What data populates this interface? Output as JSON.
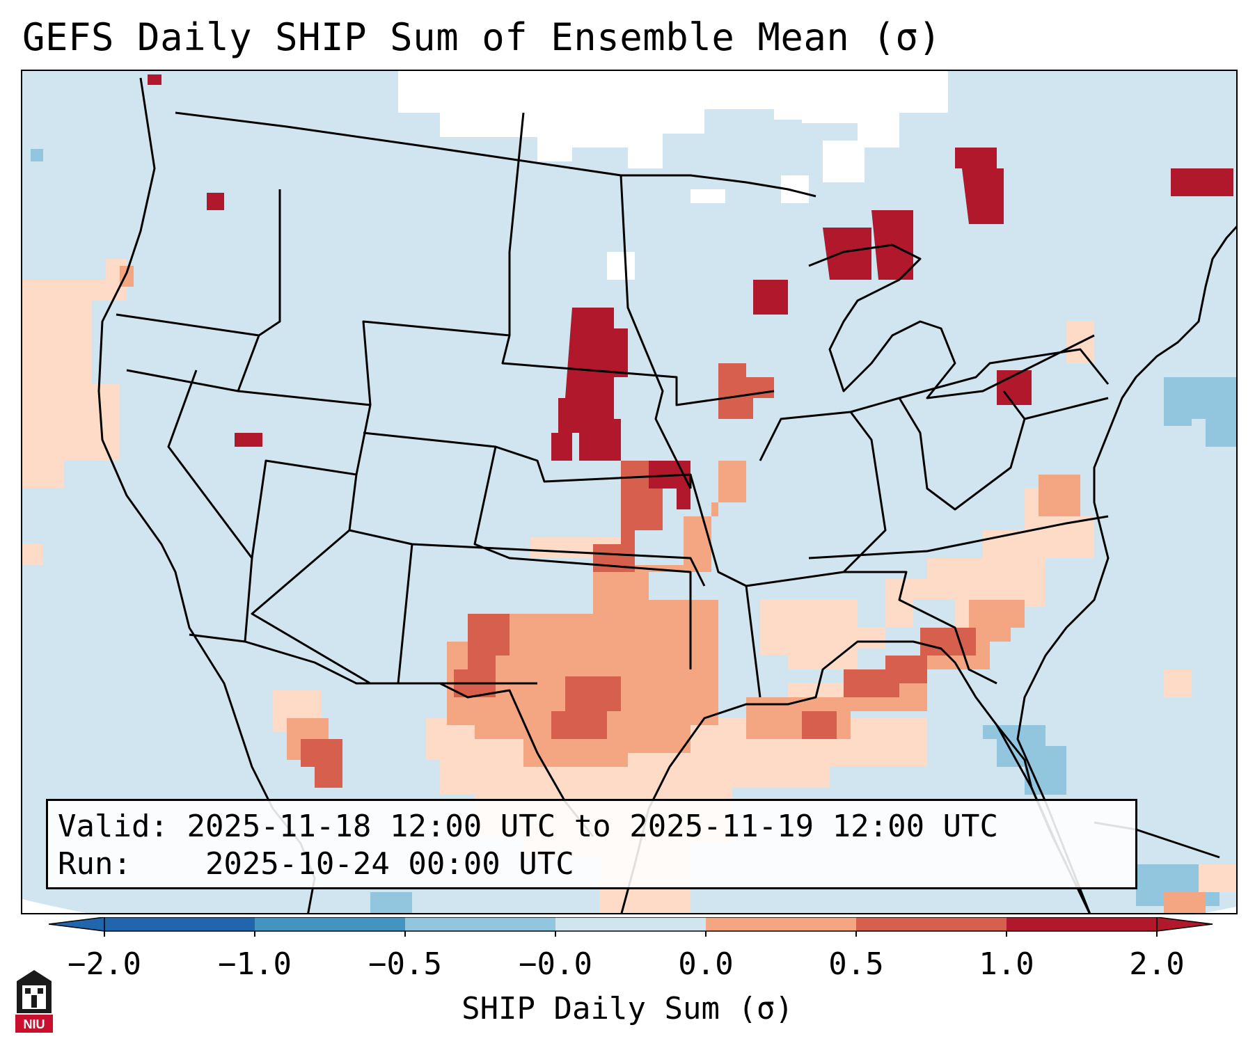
{
  "title": "GEFS Daily SHIP Sum of Ensemble Mean (σ)",
  "info": {
    "valid_label": "Valid:",
    "valid_value": "2025-11-18 12:00 UTC to 2025-11-19 12:00 UTC",
    "run_label": "Run:",
    "run_value": "2025-10-24 00:00 UTC"
  },
  "colorbar": {
    "label": "SHIP Daily Sum (σ)",
    "ticks": [
      "−2.0",
      "−1.0",
      "−0.5",
      "−0.0",
      "0.0",
      "0.5",
      "1.0",
      "2.0"
    ],
    "colors": [
      "#2166ac",
      "#4393c3",
      "#92c5de",
      "#d1e5f0",
      "#fddbc7",
      "#f4a582",
      "#d6604d",
      "#b2182b"
    ],
    "extend": "both"
  },
  "map": {
    "background_color": "#d1e5f0",
    "projection": "Lambert conformal, continental United States"
  },
  "logo": {
    "text": "NIU",
    "icon": "niu-logo-icon"
  }
}
